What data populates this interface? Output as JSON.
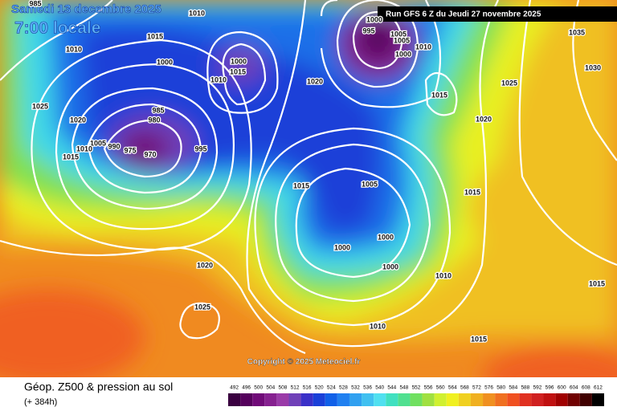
{
  "header": {
    "date": "Samedi 13 decembre 2025",
    "time": "7:00 locale",
    "run": "Run GFS 6 Z du Jeudi 27 novembre 2025"
  },
  "map": {
    "isobar_labels": [
      985,
      1010,
      1015,
      1010,
      1000,
      1025,
      1020,
      985,
      980,
      990,
      975,
      970,
      1005,
      1010,
      1015,
      995,
      1000,
      1015,
      1010,
      995,
      1000,
      1005,
      1005,
      1000,
      1010,
      1020,
      1015,
      1020,
      1025,
      1035,
      1030,
      1015,
      1005,
      1000,
      1000,
      1000,
      1010,
      1015,
      1020,
      1025,
      1010,
      1015,
      1015
    ],
    "copyright": "Copyright © 2025 Meteociel.fr"
  },
  "legend": {
    "title": "Géop. Z500 & pression au sol",
    "lead": "(+ 384h)",
    "scale": [
      492,
      496,
      500,
      504,
      508,
      512,
      516,
      520,
      524,
      528,
      532,
      536,
      540,
      544,
      548,
      552,
      556,
      560,
      564,
      568,
      572,
      576,
      580,
      584,
      588,
      592,
      596,
      600,
      604,
      608,
      612
    ],
    "colors": [
      "#3a0040",
      "#55005c",
      "#700a78",
      "#862090",
      "#9a3aa8",
      "#7040b8",
      "#3a30c8",
      "#1a40d8",
      "#1060e8",
      "#2080f0",
      "#30a0f0",
      "#40c0f0",
      "#50e0f0",
      "#40e0c0",
      "#50e090",
      "#70e060",
      "#a0e040",
      "#d0f030",
      "#f0f020",
      "#f0d020",
      "#f0b020",
      "#f09020",
      "#f07020",
      "#f05020",
      "#e03020",
      "#d02020",
      "#c01010",
      "#a00000",
      "#700000",
      "#400000",
      "#000000"
    ]
  }
}
